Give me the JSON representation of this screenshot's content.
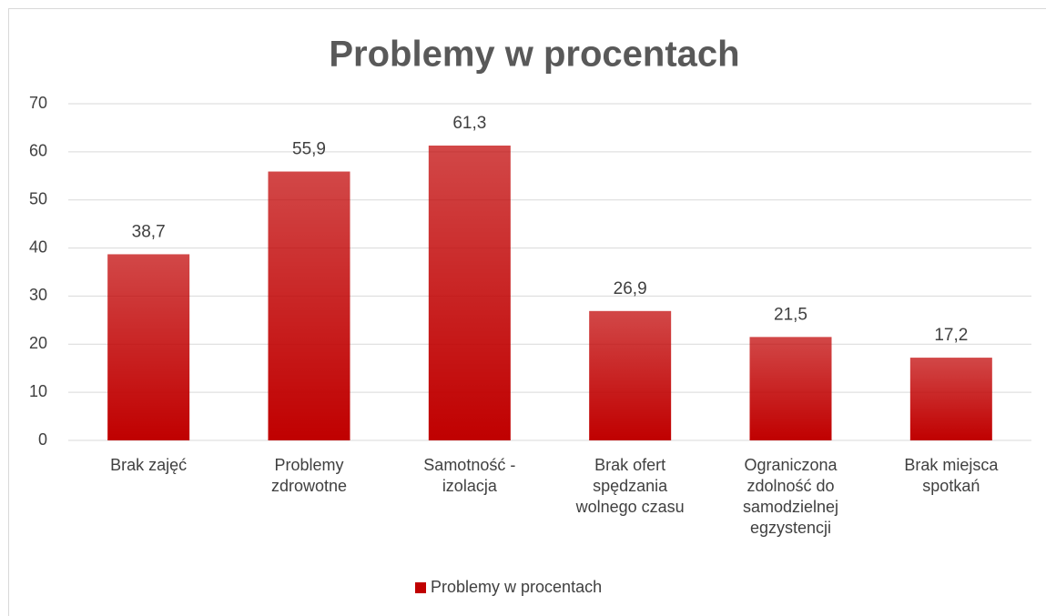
{
  "chart_data": {
    "type": "bar",
    "title": "Problemy w procentach",
    "categories": [
      "Brak zajęć",
      "Problemy zdrowotne",
      "Samotność - izolacja",
      "Brak ofert spędzania wolnego czasu",
      "Ograniczona zdolność do samodzielnej egzystencji",
      "Brak miejsca spotkań"
    ],
    "series": [
      {
        "name": "Problemy w procentach",
        "color": "#c00000",
        "values": [
          38.7,
          55.9,
          61.3,
          26.9,
          21.5,
          17.2
        ],
        "value_labels": [
          "38,7",
          "55,9",
          "61,3",
          "26,9",
          "21,5",
          "17,2"
        ]
      }
    ],
    "ylim": [
      0,
      70
    ],
    "yticks": [
      0,
      10,
      20,
      30,
      40,
      50,
      60,
      70
    ],
    "grid": true,
    "legend": "bottom"
  }
}
